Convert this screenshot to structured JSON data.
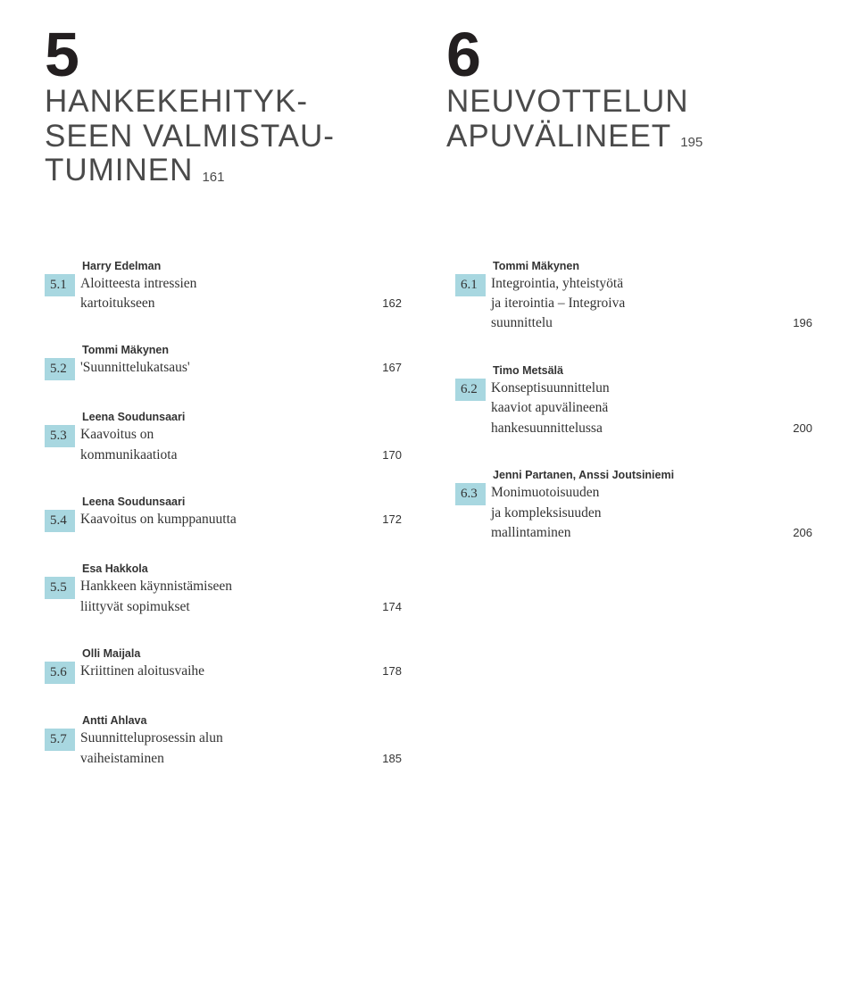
{
  "chapters": {
    "left": {
      "num": "5",
      "title_lines": [
        "HANKEKEHITYK-",
        "SEEN VALMISTAU-",
        "TUMINEN"
      ],
      "page": "161"
    },
    "right": {
      "num": "6",
      "title_lines": [
        "NEUVOTTELUN",
        "APUVÄLINEET"
      ],
      "page": "195"
    }
  },
  "left_col": [
    {
      "author": "Harry Edelman",
      "num": "5.1",
      "lines": [
        "Aloitteesta intressien",
        "kartoitukseen"
      ],
      "page": "162"
    },
    {
      "author": "Tommi Mäkynen",
      "num": "5.2",
      "lines": [
        "'Suunnittelukatsaus'"
      ],
      "page": "167"
    },
    {
      "author": "Leena Soudunsaari",
      "num": "5.3",
      "lines": [
        "Kaavoitus on",
        "kommunikaatiota"
      ],
      "page": "170"
    },
    {
      "author": "Leena Soudunsaari",
      "num": "5.4",
      "lines": [
        "Kaavoitus on kumppanuutta"
      ],
      "page": "172"
    },
    {
      "author": "Esa Hakkola",
      "num": "5.5",
      "lines": [
        "Hankkeen käynnistämiseen",
        "liittyvät sopimukset"
      ],
      "page": "174"
    },
    {
      "author": "Olli Maijala",
      "num": "5.6",
      "lines": [
        "Kriittinen aloitusvaihe"
      ],
      "page": "178"
    },
    {
      "author": "Antti Ahlava",
      "num": "5.7",
      "lines": [
        "Suunnitteluprosessin alun",
        "vaiheistaminen"
      ],
      "page": "185"
    }
  ],
  "right_col": [
    {
      "author": "Tommi Mäkynen",
      "num": "6.1",
      "lines": [
        "Integrointia, yhteistyötä",
        "ja iterointia – Integroiva",
        "suunnittelu"
      ],
      "page": "196"
    },
    {
      "author": "Timo Metsälä",
      "num": "6.2",
      "lines": [
        "Konseptisuunnittelun",
        "kaaviot apuvälineenä",
        "hankesuunnittelussa"
      ],
      "page": "200"
    },
    {
      "author": "Jenni Partanen, Anssi Joutsiniemi",
      "num": "6.3",
      "lines": [
        "Monimuotoisuuden",
        "ja kompleksisuuden",
        "mallintaminen"
      ],
      "page": "206"
    }
  ],
  "colors": {
    "highlight": "#a8d7e0",
    "text": "#333333",
    "title": "#4a4a4a",
    "bg": "#ffffff"
  }
}
